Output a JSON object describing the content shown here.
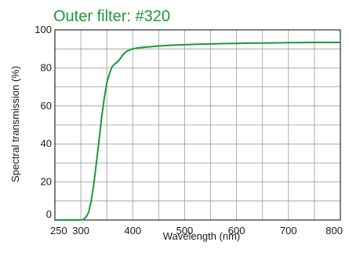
{
  "chart_data": {
    "type": "line",
    "title": "Outer filter: #320",
    "xlabel": "Wavelength (nm)",
    "ylabel": "Spectral transmission (%)",
    "xlim": [
      250,
      800
    ],
    "ylim": [
      0,
      100
    ],
    "x_ticks": [
      250,
      300,
      400,
      500,
      600,
      700,
      800
    ],
    "x_tick_labels": [
      "250",
      "300",
      "400",
      "500",
      "600",
      "700",
      "800"
    ],
    "y_ticks": [
      0,
      20,
      40,
      60,
      80,
      100
    ],
    "y_tick_labels": [
      "0",
      "20",
      "40",
      "60",
      "80",
      "100"
    ],
    "grid": true,
    "colors": {
      "title": "#1a9a3a",
      "series": "#1a9a3a",
      "grid": "#9a9a9a",
      "axis": "#000000"
    },
    "series": [
      {
        "x": [
          250,
          300,
          305,
          310,
          315,
          320,
          325,
          330,
          335,
          340,
          345,
          350,
          355,
          360,
          365,
          370,
          375,
          380,
          385,
          390,
          395,
          400,
          410,
          420,
          440,
          460,
          480,
          500,
          520,
          540,
          560,
          580,
          600,
          620,
          640,
          660,
          680,
          700,
          720,
          740,
          760,
          780,
          800
        ],
        "y": [
          0,
          0,
          0.3,
          1.5,
          4,
          10,
          19,
          30,
          42,
          54,
          64,
          72,
          77,
          80.5,
          82,
          83,
          84.5,
          86.5,
          88,
          89,
          89.5,
          90,
          90.5,
          90.8,
          91.3,
          91.7,
          92,
          92.2,
          92.4,
          92.5,
          92.7,
          92.8,
          92.9,
          93,
          93.1,
          93.1,
          93.2,
          93.3,
          93.3,
          93.4,
          93.4,
          93.4,
          93.4
        ]
      }
    ]
  }
}
